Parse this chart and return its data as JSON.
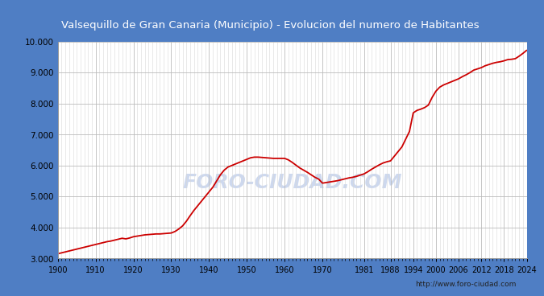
{
  "title": "Valsequillo de Gran Canaria (Municipio) - Evolucion del numero de Habitantes",
  "title_bg": "#4f7ec4",
  "title_color": "#ffffff",
  "watermark": "FORO-CIUDAD.COM",
  "url": "http://www.foro-ciudad.com",
  "plot_bg": "#ffffff",
  "outer_bg": "#4f7ec4",
  "line_color": "#cc0000",
  "line_width": 1.3,
  "ylim": [
    3000,
    10000
  ],
  "yticks": [
    3000,
    4000,
    5000,
    6000,
    7000,
    8000,
    9000,
    10000
  ],
  "xticks": [
    1900,
    1910,
    1920,
    1930,
    1940,
    1950,
    1960,
    1970,
    1981,
    1988,
    1994,
    2000,
    2006,
    2012,
    2018,
    2024
  ],
  "data": [
    [
      1900,
      3150
    ],
    [
      1901,
      3180
    ],
    [
      1902,
      3210
    ],
    [
      1903,
      3240
    ],
    [
      1904,
      3270
    ],
    [
      1905,
      3300
    ],
    [
      1906,
      3330
    ],
    [
      1907,
      3360
    ],
    [
      1908,
      3390
    ],
    [
      1909,
      3420
    ],
    [
      1910,
      3450
    ],
    [
      1911,
      3480
    ],
    [
      1912,
      3510
    ],
    [
      1913,
      3540
    ],
    [
      1914,
      3560
    ],
    [
      1915,
      3590
    ],
    [
      1916,
      3620
    ],
    [
      1917,
      3650
    ],
    [
      1918,
      3630
    ],
    [
      1919,
      3660
    ],
    [
      1920,
      3700
    ],
    [
      1921,
      3720
    ],
    [
      1922,
      3740
    ],
    [
      1923,
      3760
    ],
    [
      1924,
      3770
    ],
    [
      1925,
      3780
    ],
    [
      1926,
      3790
    ],
    [
      1927,
      3790
    ],
    [
      1928,
      3800
    ],
    [
      1929,
      3810
    ],
    [
      1930,
      3820
    ],
    [
      1931,
      3870
    ],
    [
      1932,
      3950
    ],
    [
      1933,
      4050
    ],
    [
      1934,
      4200
    ],
    [
      1935,
      4380
    ],
    [
      1936,
      4550
    ],
    [
      1937,
      4700
    ],
    [
      1938,
      4850
    ],
    [
      1939,
      5000
    ],
    [
      1940,
      5150
    ],
    [
      1941,
      5300
    ],
    [
      1942,
      5500
    ],
    [
      1943,
      5700
    ],
    [
      1944,
      5850
    ],
    [
      1945,
      5950
    ],
    [
      1946,
      6000
    ],
    [
      1947,
      6050
    ],
    [
      1948,
      6100
    ],
    [
      1949,
      6150
    ],
    [
      1950,
      6200
    ],
    [
      1951,
      6250
    ],
    [
      1952,
      6270
    ],
    [
      1953,
      6270
    ],
    [
      1954,
      6260
    ],
    [
      1955,
      6250
    ],
    [
      1956,
      6240
    ],
    [
      1957,
      6230
    ],
    [
      1958,
      6230
    ],
    [
      1959,
      6230
    ],
    [
      1960,
      6230
    ],
    [
      1961,
      6180
    ],
    [
      1962,
      6100
    ],
    [
      1963,
      6010
    ],
    [
      1964,
      5920
    ],
    [
      1965,
      5850
    ],
    [
      1966,
      5780
    ],
    [
      1967,
      5700
    ],
    [
      1968,
      5620
    ],
    [
      1969,
      5560
    ],
    [
      1970,
      5430
    ],
    [
      1971,
      5450
    ],
    [
      1972,
      5470
    ],
    [
      1973,
      5490
    ],
    [
      1974,
      5510
    ],
    [
      1975,
      5540
    ],
    [
      1976,
      5570
    ],
    [
      1977,
      5600
    ],
    [
      1978,
      5620
    ],
    [
      1979,
      5650
    ],
    [
      1980,
      5690
    ],
    [
      1981,
      5730
    ],
    [
      1982,
      5800
    ],
    [
      1983,
      5880
    ],
    [
      1984,
      5950
    ],
    [
      1985,
      6020
    ],
    [
      1986,
      6080
    ],
    [
      1987,
      6120
    ],
    [
      1988,
      6150
    ],
    [
      1989,
      6300
    ],
    [
      1990,
      6450
    ],
    [
      1991,
      6600
    ],
    [
      1992,
      6850
    ],
    [
      1993,
      7100
    ],
    [
      1994,
      7700
    ],
    [
      1995,
      7780
    ],
    [
      1996,
      7820
    ],
    [
      1997,
      7870
    ],
    [
      1998,
      7950
    ],
    [
      1999,
      8200
    ],
    [
      2000,
      8400
    ],
    [
      2001,
      8530
    ],
    [
      2002,
      8600
    ],
    [
      2003,
      8650
    ],
    [
      2004,
      8700
    ],
    [
      2005,
      8750
    ],
    [
      2006,
      8800
    ],
    [
      2007,
      8870
    ],
    [
      2008,
      8930
    ],
    [
      2009,
      9000
    ],
    [
      2010,
      9080
    ],
    [
      2011,
      9120
    ],
    [
      2012,
      9160
    ],
    [
      2013,
      9220
    ],
    [
      2014,
      9260
    ],
    [
      2015,
      9300
    ],
    [
      2016,
      9330
    ],
    [
      2017,
      9350
    ],
    [
      2018,
      9380
    ],
    [
      2019,
      9420
    ],
    [
      2020,
      9430
    ],
    [
      2021,
      9450
    ],
    [
      2022,
      9530
    ],
    [
      2023,
      9620
    ],
    [
      2024,
      9720
    ]
  ]
}
